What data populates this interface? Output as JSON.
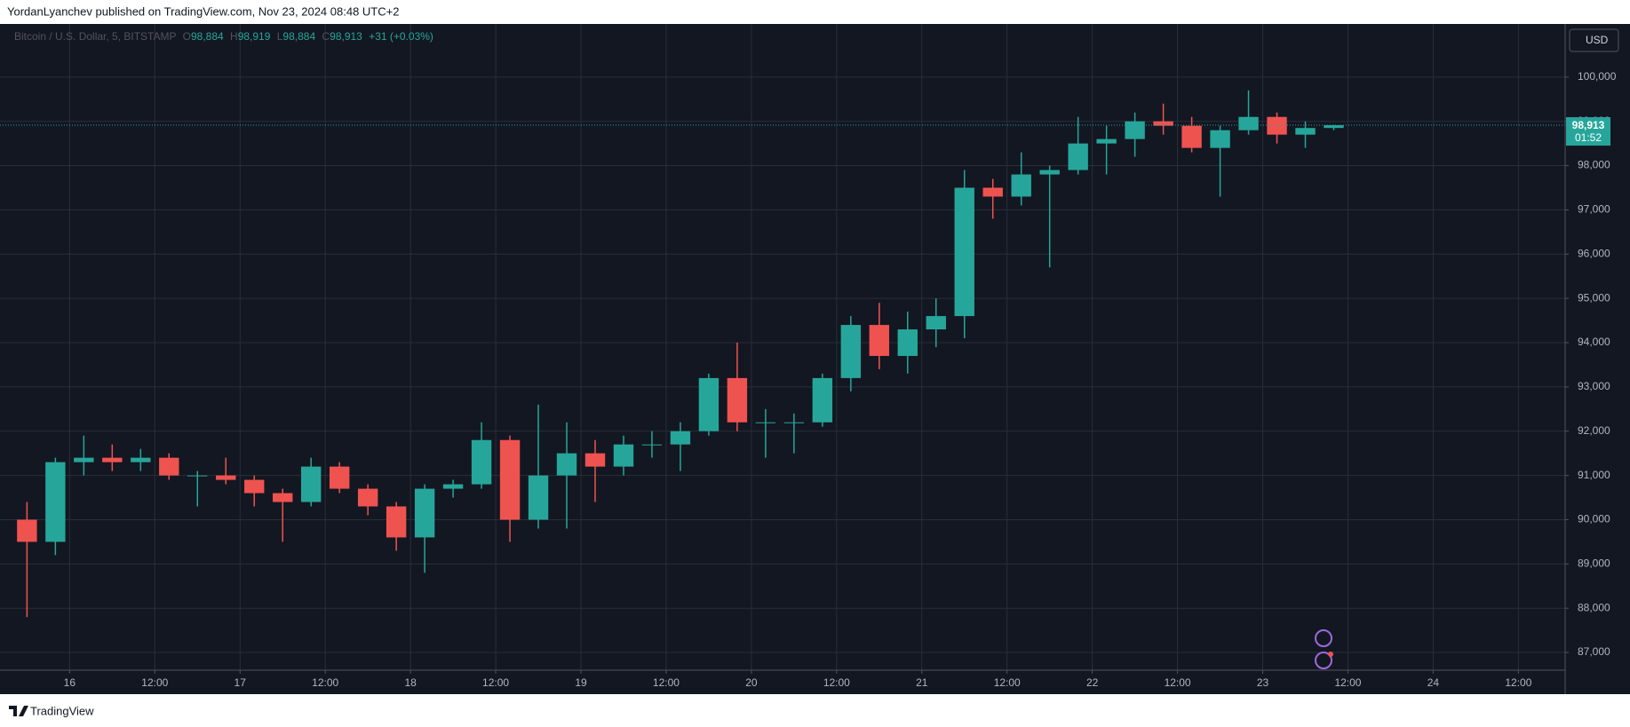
{
  "header": {
    "publisher": "YordanLyanchev published on TradingView.com, Nov 23, 2024 08:48 UTC+2"
  },
  "footer": {
    "brand": "TradingView"
  },
  "chart_data": {
    "type": "candlestick",
    "legend": {
      "symbol": "Bitcoin / U.S. Dollar, 5, BITSTAMP",
      "open": {
        "label": "O",
        "text": "98,884"
      },
      "high": {
        "label": "H",
        "text": "98,919"
      },
      "low": {
        "label": "L",
        "text": "98,884"
      },
      "close": {
        "label": "C",
        "text": "98,913"
      },
      "change": "+31 (+0.03%)"
    },
    "currency": "USD",
    "last_price": {
      "value": 98913,
      "label": "98,913"
    },
    "countdown": "01:52",
    "up_color": "#26a69a",
    "down_color": "#ef5350",
    "grid": true,
    "x": [
      "15 16:00",
      "15 20:00",
      "16 00:00",
      "16 04:00",
      "16 08:00",
      "16 12:00",
      "16 16:00",
      "16 20:00",
      "17 00:00",
      "17 04:00",
      "17 08:00",
      "17 12:00",
      "17 16:00",
      "17 20:00",
      "18 00:00",
      "18 04:00",
      "18 08:00",
      "18 12:00",
      "18 16:00",
      "18 20:00",
      "19 00:00",
      "19 04:00",
      "19 08:00",
      "19 12:00",
      "19 16:00",
      "19 20:00",
      "20 00:00",
      "20 04:00",
      "20 08:00",
      "20 12:00",
      "20 16:00",
      "20 20:00",
      "21 00:00",
      "21 04:00",
      "21 08:00",
      "21 12:00",
      "21 16:00",
      "21 20:00",
      "22 00:00",
      "22 04:00",
      "22 08:00",
      "22 12:00",
      "22 16:00",
      "22 20:00",
      "23 00:00",
      "23 04:00",
      "23 08:00"
    ],
    "open": [
      90000,
      89500,
      91300,
      91400,
      91300,
      91400,
      91000,
      91000,
      90900,
      90600,
      90400,
      91200,
      90700,
      90300,
      89600,
      90700,
      90800,
      91800,
      90000,
      91000,
      91500,
      91200,
      91700,
      91700,
      92000,
      93200,
      92200,
      92200,
      92200,
      93200,
      94400,
      93700,
      94300,
      94600,
      97500,
      97300,
      97800,
      97900,
      98500,
      98600,
      99000,
      98900,
      98400,
      98800,
      99100,
      98700,
      98850
    ],
    "high": [
      90400,
      91400,
      91900,
      91700,
      91600,
      91500,
      91100,
      91400,
      91000,
      90700,
      91400,
      91300,
      90800,
      90400,
      90800,
      90900,
      92200,
      91900,
      92600,
      92200,
      91800,
      91900,
      92000,
      92200,
      93300,
      94000,
      92500,
      92400,
      93300,
      94600,
      94900,
      94700,
      95000,
      97900,
      97700,
      98300,
      98000,
      99100,
      98900,
      99200,
      99400,
      99100,
      98900,
      99700,
      99200,
      99000,
      98919
    ],
    "low": [
      87800,
      89200,
      91000,
      91100,
      91100,
      90900,
      90300,
      90800,
      90300,
      89500,
      90300,
      90600,
      90100,
      89300,
      88800,
      90500,
      90700,
      89500,
      89800,
      89800,
      90400,
      91000,
      91400,
      91100,
      91900,
      92000,
      91400,
      91500,
      92100,
      92900,
      93400,
      93300,
      93900,
      94100,
      96800,
      97100,
      95700,
      97800,
      97800,
      98200,
      98700,
      98300,
      97300,
      98700,
      98500,
      98400,
      98800
    ],
    "close": [
      89500,
      91300,
      91400,
      91300,
      91400,
      91000,
      91000,
      90900,
      90600,
      90400,
      91200,
      90700,
      90300,
      89600,
      90700,
      90800,
      91800,
      90000,
      91000,
      91500,
      91200,
      91700,
      91700,
      92000,
      93200,
      92200,
      92200,
      92200,
      93200,
      94400,
      93700,
      94300,
      94600,
      97500,
      97300,
      97800,
      97900,
      98500,
      98600,
      99000,
      98900,
      98400,
      98800,
      99100,
      98700,
      98850,
      98913
    ],
    "xlim": [
      "15 14:12",
      "24 18:35"
    ],
    "xticks": [
      {
        "value": "16 00:00",
        "label": "16"
      },
      {
        "value": "16 12:00",
        "label": "12:00"
      },
      {
        "value": "17 00:00",
        "label": "17"
      },
      {
        "value": "17 12:00",
        "label": "12:00"
      },
      {
        "value": "18 00:00",
        "label": "18"
      },
      {
        "value": "18 12:00",
        "label": "12:00"
      },
      {
        "value": "19 00:00",
        "label": "19"
      },
      {
        "value": "19 12:00",
        "label": "12:00"
      },
      {
        "value": "20 00:00",
        "label": "20"
      },
      {
        "value": "20 12:00",
        "label": "12:00"
      },
      {
        "value": "21 00:00",
        "label": "21"
      },
      {
        "value": "21 12:00",
        "label": "12:00"
      },
      {
        "value": "22 00:00",
        "label": "22"
      },
      {
        "value": "22 12:00",
        "label": "12:00"
      },
      {
        "value": "23 00:00",
        "label": "23"
      },
      {
        "value": "23 12:00",
        "label": "12:00"
      },
      {
        "value": "24 00:00",
        "label": "24"
      },
      {
        "value": "24 12:00",
        "label": "12:00"
      }
    ],
    "ylim": [
      86600,
      101200
    ],
    "yticks": [
      {
        "value": 87000,
        "label": "87,000"
      },
      {
        "value": 88000,
        "label": "88,000"
      },
      {
        "value": 89000,
        "label": "89,000"
      },
      {
        "value": 90000,
        "label": "90,000"
      },
      {
        "value": 91000,
        "label": "91,000"
      },
      {
        "value": 92000,
        "label": "92,000"
      },
      {
        "value": 93000,
        "label": "93,000"
      },
      {
        "value": 94000,
        "label": "94,000"
      },
      {
        "value": 95000,
        "label": "95,000"
      },
      {
        "value": 96000,
        "label": "96,000"
      },
      {
        "value": 97000,
        "label": "97,000"
      },
      {
        "value": 98000,
        "label": "98,000"
      },
      {
        "value": 99000,
        "label": "99,000"
      },
      {
        "value": 100000,
        "label": "100,000"
      }
    ]
  }
}
